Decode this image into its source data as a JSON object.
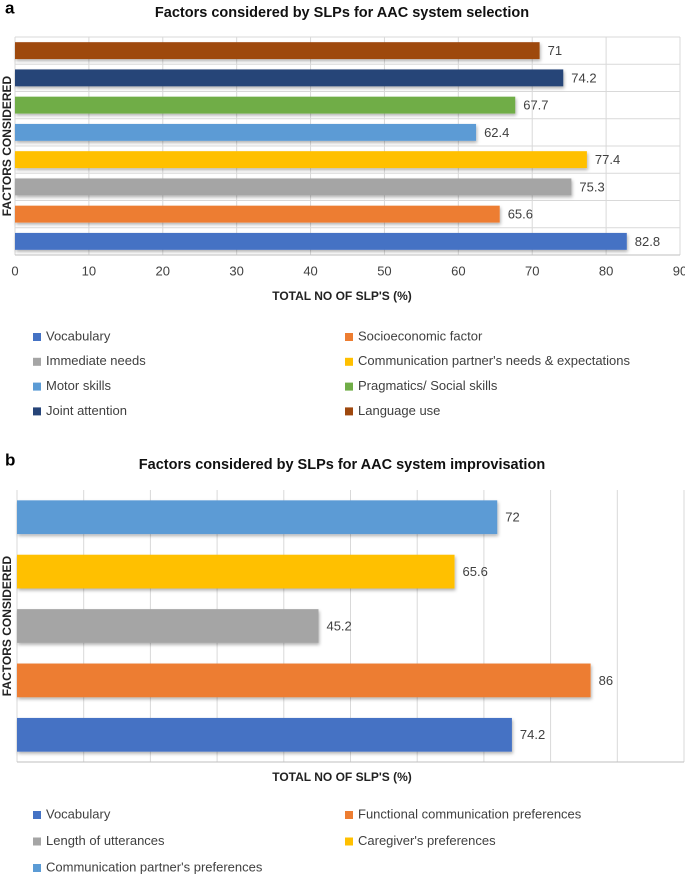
{
  "chart_data": [
    {
      "type": "bar",
      "orientation": "horizontal",
      "panel": "a",
      "title": "Factors considered by SLPs for AAC system selection",
      "xlabel": "TOTAL NO OF SLP'S (%)",
      "ylabel": "FACTORS CONSIDERED",
      "categories": [
        "Vocabulary",
        "Socioeconomic factor",
        "Immediate needs",
        "Communication partner's needs & expectations",
        "Motor skills",
        "Pragmatics/ Social skills",
        "Joint attention",
        "Language use"
      ],
      "values": [
        82.8,
        65.6,
        75.3,
        77.4,
        62.4,
        67.7,
        74.2,
        71
      ],
      "colors": [
        "#4472c4",
        "#ed7d31",
        "#a5a5a5",
        "#ffc000",
        "#5b9bd5",
        "#70ad47",
        "#264478",
        "#9e480e"
      ],
      "xlim": [
        0,
        90
      ],
      "xticks": [
        0,
        10,
        20,
        30,
        40,
        50,
        60,
        70,
        80,
        90
      ],
      "show_tick_labels": true,
      "grid": true
    },
    {
      "type": "bar",
      "orientation": "horizontal",
      "panel": "b",
      "title": "Factors considered by SLPs for AAC system improvisation",
      "xlabel": "TOTAL NO OF SLP'S (%)",
      "ylabel": "FACTORS CONSIDERED",
      "categories": [
        "Vocabulary",
        "Functional communication preferences",
        "Length of utterances",
        "Caregiver's preferences",
        "Communication partner's preferences"
      ],
      "values": [
        74.2,
        86,
        45.2,
        65.6,
        72
      ],
      "colors": [
        "#4472c4",
        "#ed7d31",
        "#a5a5a5",
        "#ffc000",
        "#5b9bd5"
      ],
      "xlim": [
        0,
        100
      ],
      "xticks": [
        0,
        10,
        20,
        30,
        40,
        50,
        60,
        70,
        80,
        90,
        100
      ],
      "show_tick_labels": false,
      "grid": true
    }
  ]
}
